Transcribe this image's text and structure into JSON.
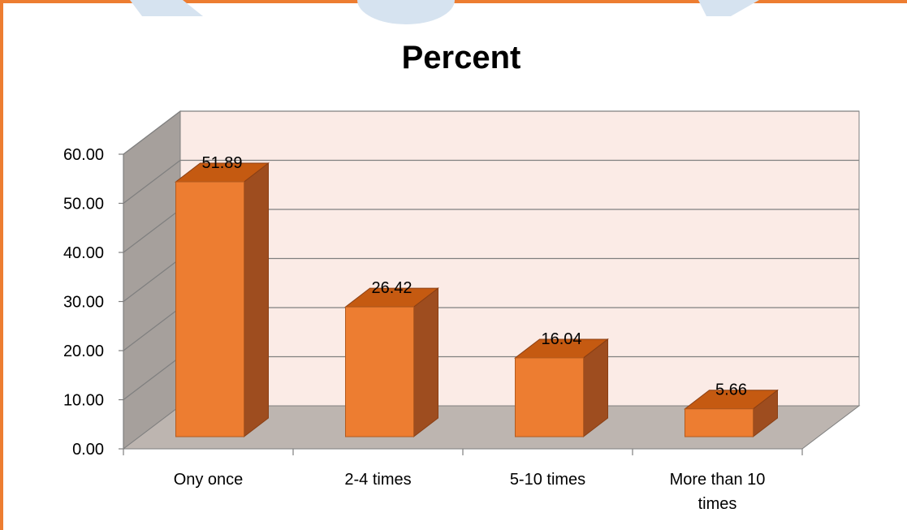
{
  "colors": {
    "frame": "#ed7d31",
    "bar_front": "#ed7d31",
    "bar_top": "#c55a11",
    "bar_side": "#9e4d1f",
    "back_wall": "#fbebe6",
    "side_wall": "#a6a09c",
    "floor": "#bdb5b0",
    "gridline": "#7f7f7f",
    "watermark": "#d6e3f0"
  },
  "chart_data": {
    "type": "bar",
    "title": "Percent",
    "categories": [
      "Ony once",
      "2-4 times",
      "5-10 times",
      "More than 10 times"
    ],
    "category_lines": [
      [
        "Ony once"
      ],
      [
        "2-4 times"
      ],
      [
        "5-10 times"
      ],
      [
        "More than 10",
        "times"
      ]
    ],
    "values": [
      51.89,
      26.42,
      16.04,
      5.66
    ],
    "data_labels": [
      "51.89",
      "26.42",
      "16.04",
      "5.66"
    ],
    "yticks": [
      0,
      10,
      20,
      30,
      40,
      50,
      60
    ],
    "ytick_labels": [
      "0.00",
      "10.00",
      "20.00",
      "30.00",
      "40.00",
      "50.00",
      "60.00"
    ],
    "ylim": [
      0,
      60
    ],
    "grid": true,
    "three_d": true
  }
}
